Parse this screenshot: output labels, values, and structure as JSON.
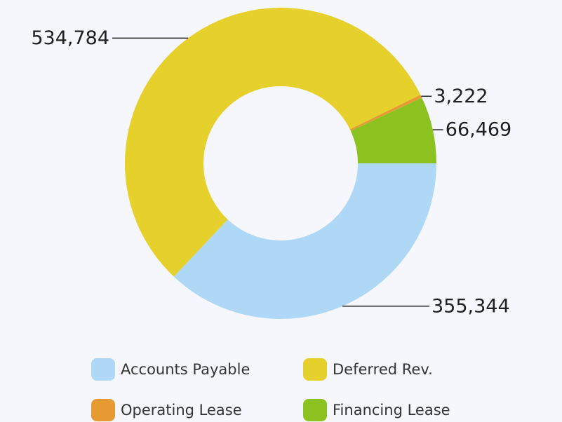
{
  "chart_data": {
    "type": "pie",
    "categories": [
      "Accounts Payable",
      "Deferred Rev.",
      "Operating Lease",
      "Financing Lease"
    ],
    "values": [
      355344,
      534784,
      3222,
      66469
    ],
    "value_labels": [
      "355,344",
      "534,784",
      "3,222",
      "66,469"
    ],
    "colors": [
      "#aed8f6",
      "#e6d02b",
      "#e89a32",
      "#8cc21f"
    ],
    "legend": "bottom"
  }
}
